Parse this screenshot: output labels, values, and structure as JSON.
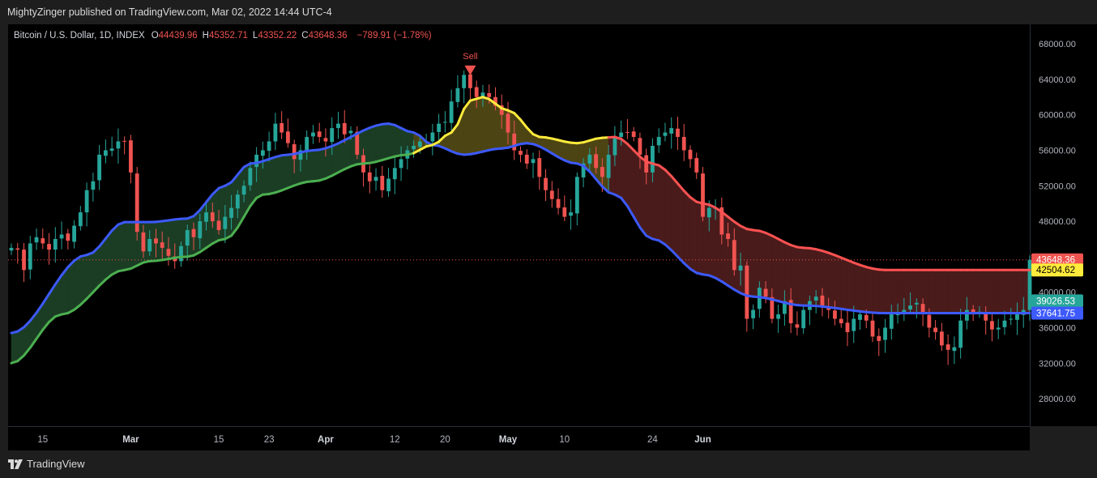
{
  "header": {
    "published": "MightyZinger published on TradingView.com, Mar 02, 2022 14:44 UTC-4"
  },
  "footer": {
    "brand": "TradingView"
  },
  "colors": {
    "bull": "#26a69a",
    "bear": "#ef5350",
    "blue": "#3d5afe",
    "yellow": "#ffeb3b",
    "green": "#4caf50",
    "red": "#ff5252"
  },
  "chart_data": {
    "type": "candlestick",
    "title": "Bitcoin / U.S. Dollar, 1D, INDEX",
    "ohlc_legend": [
      {
        "key": "O",
        "value": "44439.96"
      },
      {
        "key": "H",
        "value": "45352.71"
      },
      {
        "key": "L",
        "value": "43352.22"
      },
      {
        "key": "C",
        "value": "43648.36"
      },
      {
        "key": "",
        "value": "−789.91 (−1.78%)"
      }
    ],
    "y_range": [
      24900,
      70200
    ],
    "y_ticks": [
      "68000.00",
      "64000.00",
      "60000.00",
      "56000.00",
      "52000.00",
      "48000.00",
      "44000.00",
      "40000.00",
      "36000.00",
      "32000.00",
      "28000.00"
    ],
    "x_ticks": [
      {
        "i": 5,
        "label": "15"
      },
      {
        "i": 19,
        "label": "Mar"
      },
      {
        "i": 33,
        "label": "15"
      },
      {
        "i": 41,
        "label": "23"
      },
      {
        "i": 50,
        "label": "Apr"
      },
      {
        "i": 61,
        "label": "12"
      },
      {
        "i": 69,
        "label": "20"
      },
      {
        "i": 79,
        "label": "May"
      },
      {
        "i": 88,
        "label": "10"
      },
      {
        "i": 102,
        "label": "24"
      },
      {
        "i": 110,
        "label": "Jun"
      }
    ],
    "closes": [
      45000,
      44800,
      42500,
      45500,
      46200,
      45500,
      44800,
      46000,
      46500,
      45800,
      47500,
      49000,
      51500,
      52500,
      55500,
      56000,
      56200,
      57000,
      57000,
      53500,
      46800,
      44600,
      46000,
      45500,
      45000,
      44100,
      43500,
      45200,
      47000,
      46200,
      48000,
      49000,
      48000,
      47000,
      48500,
      49500,
      51000,
      52000,
      54000,
      55500,
      56000,
      57000,
      59000,
      58000,
      56800,
      55000,
      56000,
      57500,
      58000,
      57500,
      57000,
      58500,
      59000,
      57800,
      58200,
      55500,
      53500,
      52500,
      53000,
      51500,
      52800,
      54000,
      55000,
      56000,
      56500,
      57000,
      57000,
      58000,
      59000,
      59200,
      61500,
      63000,
      64500,
      63000,
      62000,
      62500,
      62000,
      61000,
      60000,
      58000,
      56000,
      55500,
      54500,
      55000,
      53000,
      51500,
      50500,
      49500,
      48500,
      49000,
      53000,
      54500,
      55500,
      54000,
      53000,
      55500,
      57500,
      58000,
      58000,
      57500,
      55500,
      53500,
      56500,
      57500,
      58000,
      58500,
      57500,
      56000,
      55000,
      53500,
      48500,
      49500,
      49500,
      46500,
      46000,
      42500,
      43000,
      37000,
      38000,
      40500,
      39500,
      37000,
      37500,
      39000,
      36500,
      36000,
      38000,
      39000,
      39500,
      38500,
      38000,
      37000,
      36500,
      35500,
      37000,
      37500,
      36800,
      35000,
      34500,
      36000,
      37500,
      37500,
      38000,
      38500,
      38800,
      37500,
      36000,
      35500,
      34000,
      33500,
      33800,
      36800,
      38000,
      37500,
      37800,
      36800,
      35800,
      36000,
      36800,
      37000,
      37500,
      38000,
      43648.36
    ],
    "blue_keys": [
      [
        0,
        35400
      ],
      [
        12,
        44200
      ],
      [
        18,
        47900
      ],
      [
        22,
        47900
      ],
      [
        28,
        48300
      ],
      [
        34,
        52000
      ],
      [
        38,
        54500
      ],
      [
        44,
        55500
      ],
      [
        48,
        56000
      ],
      [
        60,
        59000
      ],
      [
        64,
        58000
      ],
      [
        67,
        56600
      ],
      [
        72,
        55500
      ],
      [
        78,
        56200
      ],
      [
        82,
        56800
      ],
      [
        90,
        54500
      ],
      [
        96,
        51000
      ],
      [
        102,
        46000
      ],
      [
        110,
        42000
      ],
      [
        118,
        39500
      ],
      [
        126,
        38500
      ],
      [
        139,
        37641.75
      ]
    ],
    "yellow_keys": [
      [
        0,
        32000
      ],
      [
        8,
        37500
      ],
      [
        18,
        42500
      ],
      [
        22,
        43500
      ],
      [
        28,
        44000
      ],
      [
        34,
        46000
      ],
      [
        40,
        51000
      ],
      [
        48,
        52500
      ],
      [
        56,
        54500
      ],
      [
        63,
        55500
      ],
      [
        67,
        56600
      ],
      [
        70,
        58000
      ],
      [
        73,
        61600
      ],
      [
        75,
        62000
      ],
      [
        79,
        60500
      ],
      [
        84,
        57500
      ],
      [
        90,
        56800
      ],
      [
        94,
        57400
      ],
      [
        96,
        57500
      ],
      [
        102,
        54500
      ],
      [
        110,
        50000
      ],
      [
        118,
        47000
      ],
      [
        126,
        45000
      ],
      [
        139,
        42504.62
      ]
    ],
    "price_labels": [
      {
        "value": 43648.36,
        "text": "43648.36",
        "color": "#ef5350"
      },
      {
        "value": 42504.62,
        "text": "42504.62",
        "color": "#ffeb3b"
      },
      {
        "value": 39026.53,
        "text": "39026.53",
        "color": "#26a69a"
      },
      {
        "value": 37641.75,
        "text": "37641.75",
        "color": "#3d5afe"
      }
    ],
    "signal": {
      "i": 73,
      "label": "Sell"
    },
    "last_close_line": 43648.36
  }
}
